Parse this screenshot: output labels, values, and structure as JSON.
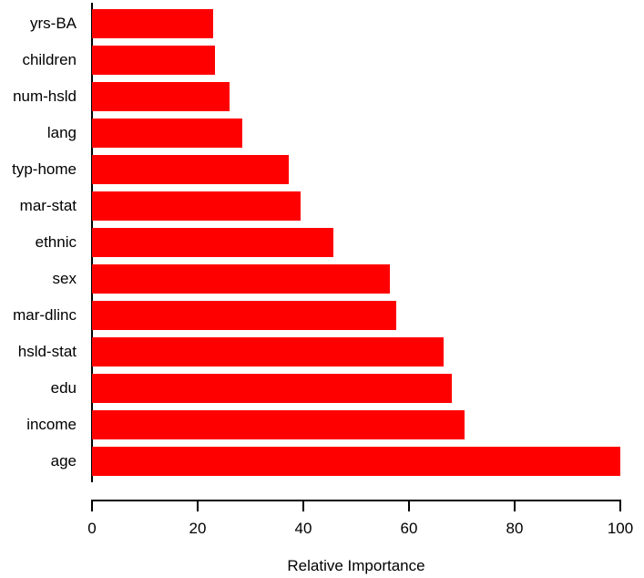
{
  "chart_data": {
    "type": "bar",
    "orientation": "horizontal",
    "title": "",
    "xlabel": "Relative Importance",
    "ylabel": "",
    "category_order": "top-to-bottom",
    "categories": [
      "yrs-BA",
      "children",
      "num-hsld",
      "lang",
      "typ-home",
      "mar-stat",
      "ethnic",
      "sex",
      "mar-dlinc",
      "hsld-stat",
      "edu",
      "income",
      "age"
    ],
    "values": [
      23.0,
      23.3,
      26.0,
      28.5,
      37.2,
      39.4,
      45.7,
      56.3,
      57.6,
      66.5,
      68.1,
      70.6,
      100.0
    ],
    "xlim": [
      0,
      100
    ],
    "x_ticks": [
      0,
      20,
      40,
      60,
      80,
      100
    ],
    "grid": false,
    "legend_position": "none",
    "bar_color": "#FF0000",
    "axis_color": "#000000",
    "text_color": "#000000",
    "background_color": "#FFFFFF"
  }
}
